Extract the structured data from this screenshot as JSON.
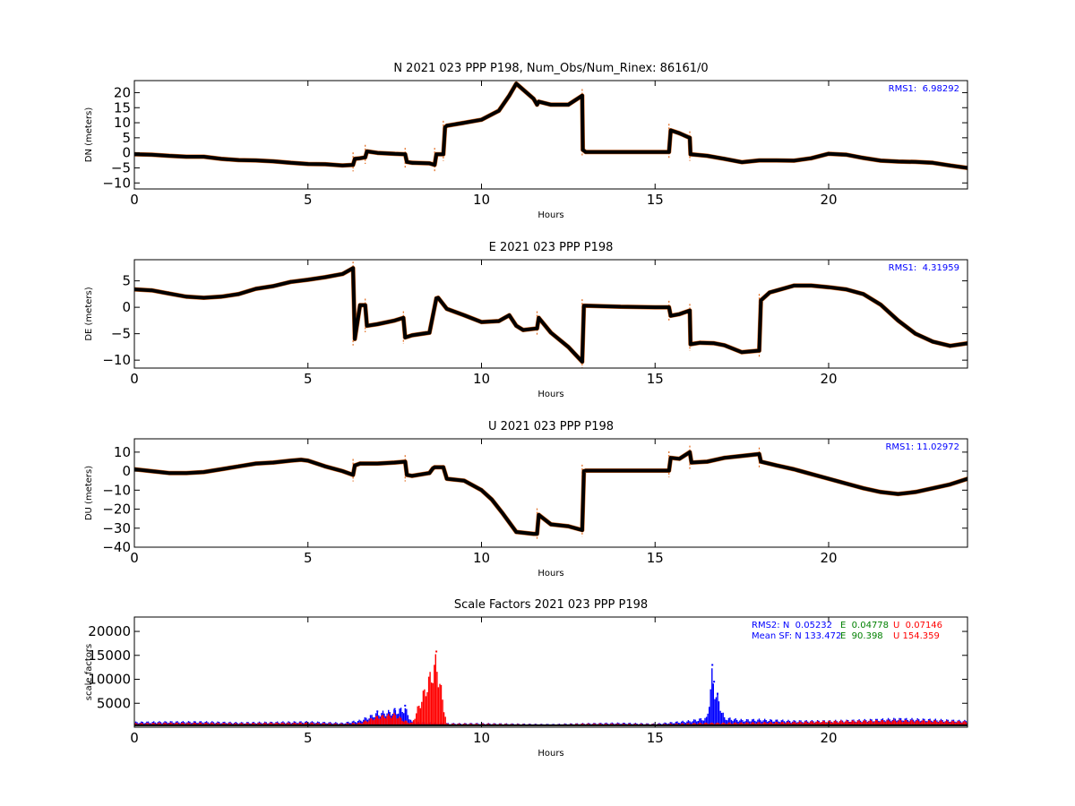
{
  "chart_data": [
    {
      "type": "scatter",
      "title": "N 2021 023 PPP  P198, Num_Obs/Num_Rinex: 86161/0",
      "xlabel": "Hours",
      "ylabel": "DN (meters)",
      "xlim": [
        0,
        24
      ],
      "ylim": [
        -12,
        24
      ],
      "xticks": [
        0,
        5,
        10,
        15,
        20
      ],
      "yticks": [
        -10,
        -5,
        0,
        5,
        10,
        15,
        20
      ],
      "grid": false,
      "annotations": [
        {
          "text": "RMS1:  6.98292",
          "color": "#0000ff",
          "position": "top-right"
        }
      ],
      "series": [
        {
          "color": "#000000",
          "x": [
            0,
            0.5,
            1,
            1.5,
            2,
            2.5,
            3,
            3.5,
            4,
            4.5,
            5,
            5.5,
            6,
            6.3,
            6.35,
            6.5,
            6.65,
            6.7,
            7,
            7.5,
            7.8,
            7.85,
            8,
            8.5,
            8.65,
            8.7,
            8.9,
            8.95,
            9,
            9.5,
            10,
            10.5,
            10.8,
            11,
            11.2,
            11.5,
            11.6,
            11.65,
            12,
            12.5,
            12.9,
            12.92,
            13,
            14,
            15,
            15.4,
            15.45,
            15.7,
            16,
            16.02,
            16.5,
            17,
            17.5,
            18,
            18.5,
            19,
            19.5,
            20,
            20.5,
            21,
            21.5,
            22,
            22.5,
            23,
            23.5,
            24
          ],
          "y": [
            -0.5,
            -0.6,
            -1,
            -1.3,
            -1.3,
            -2,
            -2.4,
            -2.5,
            -2.8,
            -3.3,
            -3.7,
            -3.8,
            -4.2,
            -4,
            -2,
            -1.8,
            -1.5,
            0.5,
            0,
            -0.3,
            -0.5,
            -3,
            -3.3,
            -3.5,
            -4,
            -0.5,
            -0.5,
            8.5,
            9,
            10,
            11,
            14,
            19,
            23,
            21,
            18,
            16,
            17,
            16,
            16,
            19,
            1,
            0.3,
            0.3,
            0.3,
            0.3,
            7.5,
            6.5,
            5,
            -0.5,
            -1,
            -2,
            -3.1,
            -2.5,
            -2.5,
            -2.6,
            -1.8,
            -0.3,
            -0.6,
            -1.7,
            -2.6,
            -2.9,
            -3,
            -3.3,
            -4.2,
            -5
          ]
        }
      ]
    },
    {
      "type": "scatter",
      "title": "E 2021 023 PPP  P198",
      "xlabel": "Hours",
      "ylabel": "DE (meters)",
      "xlim": [
        0,
        24
      ],
      "ylim": [
        -11.5,
        9
      ],
      "xticks": [
        0,
        5,
        10,
        15,
        20
      ],
      "yticks": [
        -10,
        -5,
        0,
        5
      ],
      "grid": false,
      "annotations": [
        {
          "text": "RMS1:  4.31959",
          "color": "#0000ff",
          "position": "top-right"
        }
      ],
      "series": [
        {
          "color": "#000000",
          "x": [
            0,
            0.5,
            1,
            1.5,
            2,
            2.5,
            3,
            3.5,
            4,
            4.5,
            5,
            5.5,
            6,
            6.3,
            6.35,
            6.5,
            6.65,
            6.7,
            7,
            7.5,
            7.75,
            7.8,
            7.9,
            8,
            8.5,
            8.7,
            8.75,
            9,
            9.5,
            10,
            10.5,
            10.8,
            11,
            11.2,
            11.6,
            11.65,
            12,
            12.5,
            12.9,
            12.95,
            13,
            14,
            15,
            15.4,
            15.45,
            15.7,
            16,
            16.02,
            16.3,
            16.7,
            17,
            17.5,
            18,
            18.05,
            18.3,
            19,
            19.5,
            20,
            20.5,
            21,
            21.5,
            22,
            22.5,
            23,
            23.5,
            24
          ],
          "y": [
            3.4,
            3.2,
            2.6,
            2,
            1.8,
            2,
            2.5,
            3.5,
            4,
            4.8,
            5.2,
            5.7,
            6.3,
            7.4,
            -6,
            0.4,
            0.4,
            -3.5,
            -3.2,
            -2.5,
            -2,
            -5.7,
            -5.5,
            -5.3,
            -4.8,
            1.7,
            1.8,
            -0.3,
            -1.5,
            -2.8,
            -2.6,
            -1.5,
            -3.5,
            -4.3,
            -4,
            -2,
            -4.8,
            -7.5,
            -10.3,
            0.3,
            0.3,
            0.1,
            0,
            0,
            -1.6,
            -1.3,
            -0.6,
            -7,
            -6.7,
            -6.8,
            -7.2,
            -8.5,
            -8.2,
            1.3,
            2.8,
            4.1,
            4.1,
            3.8,
            3.4,
            2.5,
            0.5,
            -2.5,
            -5,
            -6.5,
            -7.3,
            -6.8
          ]
        }
      ]
    },
    {
      "type": "scatter",
      "title": "U 2021 023 PPP  P198",
      "xlabel": "Hours",
      "ylabel": "DU (meters)",
      "xlim": [
        0,
        24
      ],
      "ylim": [
        -40,
        17
      ],
      "xticks": [
        0,
        5,
        10,
        15,
        20
      ],
      "yticks": [
        -40,
        -30,
        -20,
        -10,
        0,
        10
      ],
      "grid": false,
      "annotations": [
        {
          "text": "RMS1: 11.02972",
          "color": "#0000ff",
          "position": "top-right"
        }
      ],
      "series": [
        {
          "color": "#000000",
          "x": [
            0,
            0.5,
            1,
            1.5,
            2,
            2.5,
            3,
            3.5,
            4,
            4.5,
            4.8,
            5,
            5.5,
            6,
            6.3,
            6.35,
            6.5,
            7,
            7.5,
            7.8,
            7.85,
            8,
            8.5,
            8.6,
            8.65,
            8.9,
            9,
            9.5,
            10,
            10.3,
            10.6,
            11,
            11.5,
            11.6,
            11.65,
            12,
            12.5,
            12.9,
            12.95,
            13,
            14,
            15,
            15.4,
            15.45,
            15.7,
            16,
            16.05,
            16.5,
            17,
            17.5,
            18,
            18.05,
            18.5,
            19,
            19.5,
            20,
            20.5,
            21,
            21.5,
            22,
            22.5,
            23,
            23.5,
            24
          ],
          "y": [
            1,
            0,
            -1,
            -1,
            -0.5,
            1,
            2.5,
            4,
            4.5,
            5.5,
            6,
            5.5,
            2.5,
            0,
            -2,
            3,
            4,
            4,
            4.5,
            5,
            -2,
            -2.5,
            -1,
            1.5,
            2,
            2,
            -4,
            -5,
            -10,
            -15,
            -22,
            -32,
            -33,
            -33,
            -23,
            -28,
            -29,
            -31,
            0,
            0.3,
            0.3,
            0.3,
            0.3,
            7,
            6.5,
            10,
            4.5,
            5,
            7,
            8,
            9,
            5,
            3,
            1,
            -1.5,
            -4,
            -6.5,
            -9,
            -11,
            -12,
            -11,
            -9,
            -7,
            -4
          ]
        }
      ]
    },
    {
      "type": "scatter",
      "title": "Scale Factors 2021 023 PPP  P198",
      "xlabel": "Hours",
      "ylabel": "scale factors",
      "xlim": [
        0,
        24
      ],
      "ylim": [
        0,
        23000
      ],
      "xticks": [
        0,
        5,
        10,
        15,
        20
      ],
      "yticks": [
        5000,
        10000,
        15000,
        20000
      ],
      "grid": false,
      "annotations": [
        {
          "text": "RMS2: N  0.05232",
          "color": "#0000ff",
          "position": "top-right"
        },
        {
          "text": "E  0.04778",
          "color": "#008000",
          "position": "top-right"
        },
        {
          "text": "U  0.07146",
          "color": "#ff0000",
          "position": "top-right"
        },
        {
          "text": "Mean SF: N 133.472",
          "color": "#0000ff",
          "position": "top-right"
        },
        {
          "text": "E  90.398",
          "color": "#008000",
          "position": "top-right"
        },
        {
          "text": "U 154.359",
          "color": "#ff0000",
          "position": "top-right"
        }
      ],
      "series": [
        {
          "name": "N",
          "color": "#0000ff",
          "x": [
            0,
            1,
            2,
            3,
            4,
            5,
            6,
            6.5,
            7,
            7.5,
            7.8,
            8,
            8.7,
            9,
            10,
            11,
            12,
            13,
            14,
            15,
            16,
            16.5,
            16.65,
            16.7,
            16.8,
            17,
            17.5,
            18,
            19,
            20,
            21,
            22,
            23,
            24
          ],
          "y": [
            1200,
            1300,
            1300,
            1100,
            1200,
            1300,
            1000,
            1600,
            3300,
            3800,
            4500,
            1200,
            1000,
            900,
            900,
            800,
            700,
            900,
            1000,
            800,
            1500,
            2200,
            13000,
            9500,
            7000,
            2200,
            1700,
            1800,
            1500,
            1500,
            1700,
            2000,
            1800,
            1500
          ]
        },
        {
          "name": "E",
          "color": "#008000",
          "x": [
            0,
            2,
            4,
            6,
            8,
            10,
            12,
            14,
            16,
            18,
            20,
            22,
            24
          ],
          "y": [
            500,
            550,
            500,
            500,
            450,
            550,
            400,
            500,
            400,
            500,
            600,
            500,
            500
          ]
        },
        {
          "name": "U",
          "color": "#ff0000",
          "x": [
            0,
            1,
            2,
            3,
            4,
            5,
            6,
            6.5,
            7,
            7.5,
            7.8,
            8,
            8.7,
            9,
            10,
            11,
            12,
            13,
            14,
            15,
            16,
            16.5,
            17,
            18,
            19,
            20,
            21,
            22,
            23,
            24
          ],
          "y": [
            900,
            1000,
            1000,
            900,
            1000,
            1000,
            800,
            1000,
            2500,
            3000,
            1500,
            1000,
            15800,
            800,
            800,
            700,
            600,
            800,
            800,
            700,
            900,
            1000,
            1000,
            1100,
            1200,
            1400,
            1500,
            1600,
            1500,
            1300
          ]
        }
      ]
    }
  ]
}
